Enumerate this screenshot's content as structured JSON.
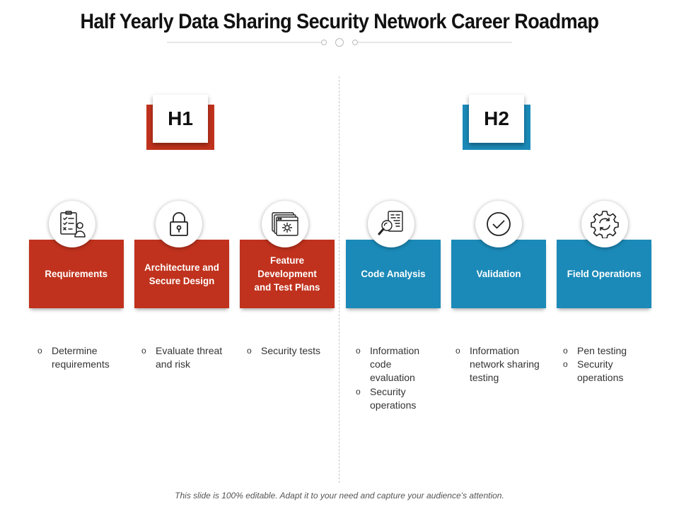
{
  "title": "Half Yearly Data Sharing Security Network Career Roadmap",
  "footer": "This slide is 100% editable. Adapt it to your need and capture your audience’s attention.",
  "colors": {
    "red": "#c0321d",
    "blue": "#1b8ab8"
  },
  "halves": [
    {
      "label": "H1",
      "color": "red"
    },
    {
      "label": "H2",
      "color": "blue"
    }
  ],
  "stages": [
    {
      "label": "Requirements",
      "icon": "checklist-person-icon",
      "bullets": [
        "Determine requirements"
      ]
    },
    {
      "label": "Architecture and Secure Design",
      "icon": "padlock-icon",
      "bullets": [
        "Evaluate threat and risk"
      ]
    },
    {
      "label": "Feature Development and Test Plans",
      "icon": "browser-gear-icon",
      "bullets": [
        "Security tests"
      ]
    },
    {
      "label": "Code Analysis",
      "icon": "code-magnifier-icon",
      "bullets": [
        "Information code evaluation",
        "Security operations"
      ]
    },
    {
      "label": "Validation",
      "icon": "checkmark-circle-icon",
      "bullets": [
        "Information network sharing testing"
      ]
    },
    {
      "label": "Field Operations",
      "icon": "gear-refresh-icon",
      "bullets": [
        "Pen testing",
        "Security operations"
      ]
    }
  ]
}
